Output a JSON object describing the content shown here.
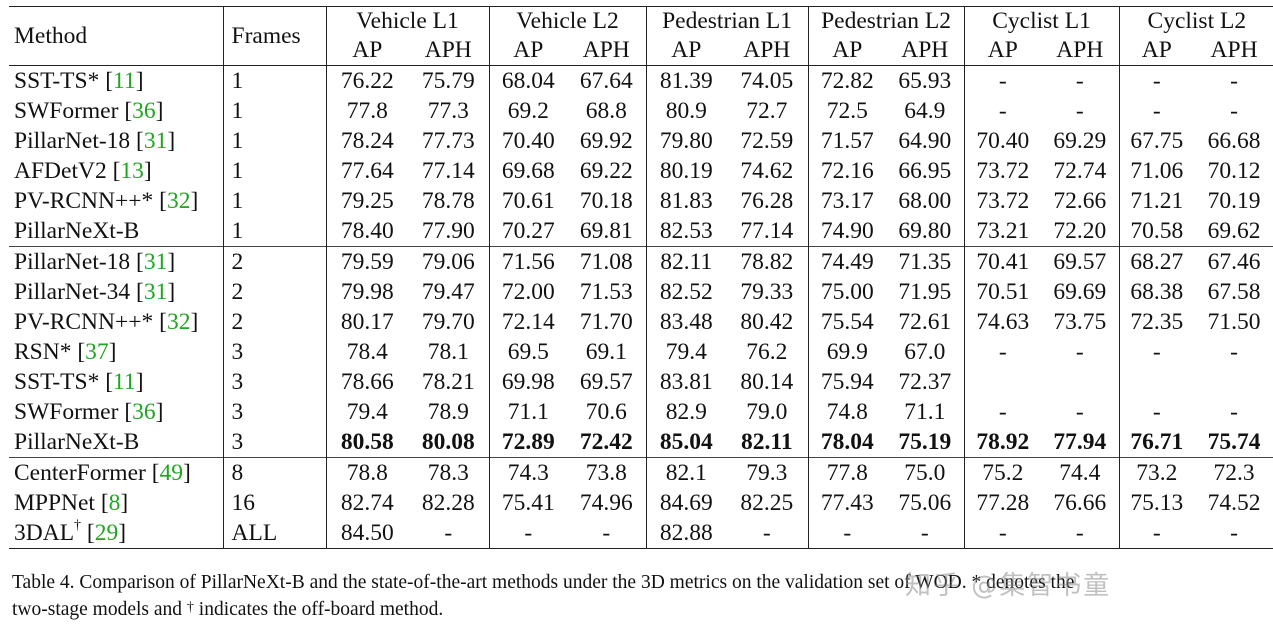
{
  "table": {
    "header": {
      "method": "Method",
      "frames": "Frames",
      "groups": [
        "Vehicle L1",
        "Vehicle L2",
        "Pedestrian L1",
        "Pedestrian L2",
        "Cyclist L1",
        "Cyclist L2"
      ],
      "ap": "AP",
      "aph": "APH"
    },
    "sections": [
      [
        {
          "name": "SST-TS*",
          "cite": "11",
          "sup": "",
          "frames": "1",
          "values": [
            "76.22",
            "75.79",
            "68.04",
            "67.64",
            "81.39",
            "74.05",
            "72.82",
            "65.93",
            "-",
            "-",
            "-",
            "-"
          ],
          "bold": false
        },
        {
          "name": "SWFormer",
          "cite": "36",
          "sup": "",
          "frames": "1",
          "values": [
            "77.8",
            "77.3",
            "69.2",
            "68.8",
            "80.9",
            "72.7",
            "72.5",
            "64.9",
            "-",
            "-",
            "-",
            "-"
          ],
          "bold": false
        },
        {
          "name": "PillarNet-18",
          "cite": "31",
          "sup": "",
          "frames": "1",
          "values": [
            "78.24",
            "77.73",
            "70.40",
            "69.92",
            "79.80",
            "72.59",
            "71.57",
            "64.90",
            "70.40",
            "69.29",
            "67.75",
            "66.68"
          ],
          "bold": false
        },
        {
          "name": "AFDetV2",
          "cite": "13",
          "sup": "",
          "frames": "1",
          "values": [
            "77.64",
            "77.14",
            "69.68",
            "69.22",
            "80.19",
            "74.62",
            "72.16",
            "66.95",
            "73.72",
            "72.74",
            "71.06",
            "70.12"
          ],
          "bold": false
        },
        {
          "name": "PV-RCNN++*",
          "cite": "32",
          "sup": "",
          "frames": "1",
          "values": [
            "79.25",
            "78.78",
            "70.61",
            "70.18",
            "81.83",
            "76.28",
            "73.17",
            "68.00",
            "73.72",
            "72.66",
            "71.21",
            "70.19"
          ],
          "bold": false
        },
        {
          "name": "PillarNeXt-B",
          "cite": "",
          "sup": "",
          "frames": "1",
          "values": [
            "78.40",
            "77.90",
            "70.27",
            "69.81",
            "82.53",
            "77.14",
            "74.90",
            "69.80",
            "73.21",
            "72.20",
            "70.58",
            "69.62"
          ],
          "bold": false
        }
      ],
      [
        {
          "name": "PillarNet-18",
          "cite": "31",
          "sup": "",
          "frames": "2",
          "values": [
            "79.59",
            "79.06",
            "71.56",
            "71.08",
            "82.11",
            "78.82",
            "74.49",
            "71.35",
            "70.41",
            "69.57",
            "68.27",
            "67.46"
          ],
          "bold": false
        },
        {
          "name": "PillarNet-34",
          "cite": "31",
          "sup": "",
          "frames": "2",
          "values": [
            "79.98",
            "79.47",
            "72.00",
            "71.53",
            "82.52",
            "79.33",
            "75.00",
            "71.95",
            "70.51",
            "69.69",
            "68.38",
            "67.58"
          ],
          "bold": false
        },
        {
          "name": "PV-RCNN++*",
          "cite": "32",
          "sup": "",
          "frames": "2",
          "values": [
            "80.17",
            "79.70",
            "72.14",
            "71.70",
            "83.48",
            "80.42",
            "75.54",
            "72.61",
            "74.63",
            "73.75",
            "72.35",
            "71.50"
          ],
          "bold": false
        },
        {
          "name": "RSN*",
          "cite": "37",
          "sup": "",
          "frames": "3",
          "values": [
            "78.4",
            "78.1",
            "69.5",
            "69.1",
            "79.4",
            "76.2",
            "69.9",
            "67.0",
            "-",
            "-",
            "-",
            "-"
          ],
          "bold": false
        },
        {
          "name": "SST-TS*",
          "cite": "11",
          "sup": "",
          "frames": "3",
          "values": [
            "78.66",
            "78.21",
            "69.98",
            "69.57",
            "83.81",
            "80.14",
            "75.94",
            "72.37",
            "",
            "",
            "",
            ""
          ],
          "bold": false
        },
        {
          "name": "SWFormer",
          "cite": "36",
          "sup": "",
          "frames": "3",
          "values": [
            "79.4",
            "78.9",
            "71.1",
            "70.6",
            "82.9",
            "79.0",
            "74.8",
            "71.1",
            "-",
            "-",
            "-",
            "-"
          ],
          "bold": false
        },
        {
          "name": "PillarNeXt-B",
          "cite": "",
          "sup": "",
          "frames": "3",
          "values": [
            "80.58",
            "80.08",
            "72.89",
            "72.42",
            "85.04",
            "82.11",
            "78.04",
            "75.19",
            "78.92",
            "77.94",
            "76.71",
            "75.74"
          ],
          "bold": true
        }
      ],
      [
        {
          "name": "CenterFormer",
          "cite": "49",
          "sup": "",
          "frames": "8",
          "values": [
            "78.8",
            "78.3",
            "74.3",
            "73.8",
            "82.1",
            "79.3",
            "77.8",
            "75.0",
            "75.2",
            "74.4",
            "73.2",
            "72.3"
          ],
          "bold": false
        },
        {
          "name": "MPPNet",
          "cite": "8",
          "sup": "",
          "frames": "16",
          "values": [
            "82.74",
            "82.28",
            "75.41",
            "74.96",
            "84.69",
            "82.25",
            "77.43",
            "75.06",
            "77.28",
            "76.66",
            "75.13",
            "74.52"
          ],
          "bold": false
        },
        {
          "name": "3DAL",
          "cite": "29",
          "sup": "†",
          "frames": "ALL",
          "values": [
            "84.50",
            "-",
            "-",
            "-",
            "82.88",
            "-",
            "-",
            "-",
            "-",
            "-",
            "-",
            "-"
          ],
          "bold": false
        }
      ]
    ]
  },
  "caption": {
    "line1": "Table 4. Comparison of PillarNeXt-B and the state-of-the-art methods under the 3D metrics on the validation set of WOD. * denotes the",
    "line2_a": "two-stage models and ",
    "line2_sup": "†",
    "line2_b": " indicates the off-board method."
  },
  "watermark": "知乎 @集智书童"
}
